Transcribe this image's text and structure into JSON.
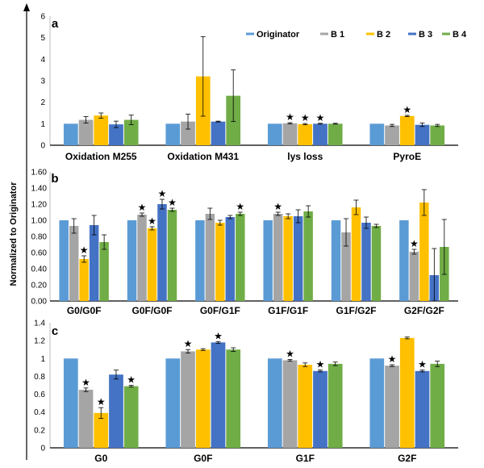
{
  "chart_data": {
    "type": "bar",
    "ylabel": "Normalized to Originator",
    "series_names": [
      "Originator",
      "B 1",
      "B 2",
      "B 3",
      "B 4"
    ],
    "colors": [
      "#5B9BD5",
      "#A5A5A5",
      "#FFC000",
      "#4472C4",
      "#70AD47"
    ],
    "panels": [
      {
        "letter": "a",
        "type": "bar",
        "ylim": [
          0,
          6
        ],
        "yticks": [
          "0",
          "1",
          "2",
          "3",
          "4",
          "5",
          "6"
        ],
        "categories": [
          "Oxidation M255",
          "Oxidation M431",
          "lys loss",
          "PyroE"
        ],
        "series": [
          {
            "name": "Originator",
            "values": [
              1.0,
              1.0,
              1.0,
              1.0
            ],
            "errors": [
              0,
              0,
              0,
              0
            ]
          },
          {
            "name": "B 1",
            "values": [
              1.18,
              1.1,
              1.02,
              0.92
            ],
            "errors": [
              0.15,
              0.35,
              0.03,
              0.05
            ]
          },
          {
            "name": "B 2",
            "values": [
              1.38,
              3.2,
              0.98,
              1.36
            ],
            "errors": [
              0.12,
              1.85,
              0.03,
              0.03
            ]
          },
          {
            "name": "B 3",
            "values": [
              0.97,
              1.1,
              1.0,
              0.95
            ],
            "errors": [
              0.15,
              0.02,
              0.02,
              0.08
            ]
          },
          {
            "name": "B 4",
            "values": [
              1.18,
              2.3,
              1.0,
              0.92
            ],
            "errors": [
              0.22,
              1.2,
              0.02,
              0.05
            ]
          }
        ],
        "stars": [
          [],
          [],
          [
            1,
            2,
            3
          ],
          [
            2
          ]
        ]
      },
      {
        "letter": "b",
        "type": "bar",
        "ylim": [
          0,
          1.6
        ],
        "yticks": [
          "0.00",
          "0.20",
          "0.40",
          "0.60",
          "0.80",
          "1.00",
          "1.20",
          "1.40",
          "1.60"
        ],
        "categories": [
          "G0/G0F",
          "G0F/G0F",
          "G0F/G1F",
          "G1F/G1F",
          "G1F/G2F",
          "G2F/G2F"
        ],
        "series": [
          {
            "name": "Originator",
            "values": [
              1.0,
              1.0,
              1.0,
              1.0,
              1.0,
              1.0
            ],
            "errors": [
              0,
              0,
              0,
              0,
              0,
              0
            ]
          },
          {
            "name": "B 1",
            "values": [
              0.93,
              1.07,
              1.08,
              1.08,
              0.85,
              0.61
            ],
            "errors": [
              0.09,
              0.02,
              0.07,
              0.02,
              0.17,
              0.03
            ]
          },
          {
            "name": "B 2",
            "values": [
              0.52,
              0.9,
              0.97,
              1.05,
              1.16,
              1.22
            ],
            "errors": [
              0.04,
              0.02,
              0.03,
              0.03,
              0.09,
              0.16
            ]
          },
          {
            "name": "B 3",
            "values": [
              0.94,
              1.2,
              1.04,
              1.05,
              0.97,
              0.32
            ],
            "errors": [
              0.12,
              0.06,
              0.02,
              0.08,
              0.07,
              0.33
            ]
          },
          {
            "name": "B 4",
            "values": [
              0.73,
              1.13,
              1.08,
              1.11,
              0.93,
              0.67
            ],
            "errors": [
              0.09,
              0.02,
              0.02,
              0.07,
              0.02,
              0.34
            ]
          }
        ],
        "stars": [
          [
            2
          ],
          [
            1,
            2,
            3,
            4
          ],
          [
            4
          ],
          [
            1
          ],
          [],
          [
            1
          ]
        ]
      },
      {
        "letter": "c",
        "type": "bar",
        "ylim": [
          0,
          1.4
        ],
        "yticks": [
          "0",
          "0.2",
          "0.4",
          "0.6",
          "0.8",
          "1",
          "1.2",
          "1.4"
        ],
        "categories": [
          "G0",
          "G0F",
          "G1F",
          "G2F"
        ],
        "series": [
          {
            "name": "Originator",
            "values": [
              1.0,
              1.0,
              1.0,
              1.0
            ],
            "errors": [
              0,
              0,
              0,
              0
            ]
          },
          {
            "name": "B 1",
            "values": [
              0.65,
              1.08,
              0.98,
              0.92
            ],
            "errors": [
              0.02,
              0.02,
              0.01,
              0.01
            ]
          },
          {
            "name": "B 2",
            "values": [
              0.39,
              1.1,
              0.93,
              1.23
            ],
            "errors": [
              0.06,
              0.01,
              0.02,
              0.01
            ]
          },
          {
            "name": "B 3",
            "values": [
              0.82,
              1.18,
              0.86,
              0.86
            ],
            "errors": [
              0.05,
              0.01,
              0.01,
              0.01
            ]
          },
          {
            "name": "B 4",
            "values": [
              0.69,
              1.1,
              0.94,
              0.94
            ],
            "errors": [
              0.01,
              0.02,
              0.02,
              0.03
            ]
          }
        ],
        "stars": [
          [
            1,
            2,
            4
          ],
          [
            1,
            3
          ],
          [
            1,
            3
          ],
          [
            1,
            3
          ]
        ]
      }
    ],
    "star_symbol": "★"
  }
}
